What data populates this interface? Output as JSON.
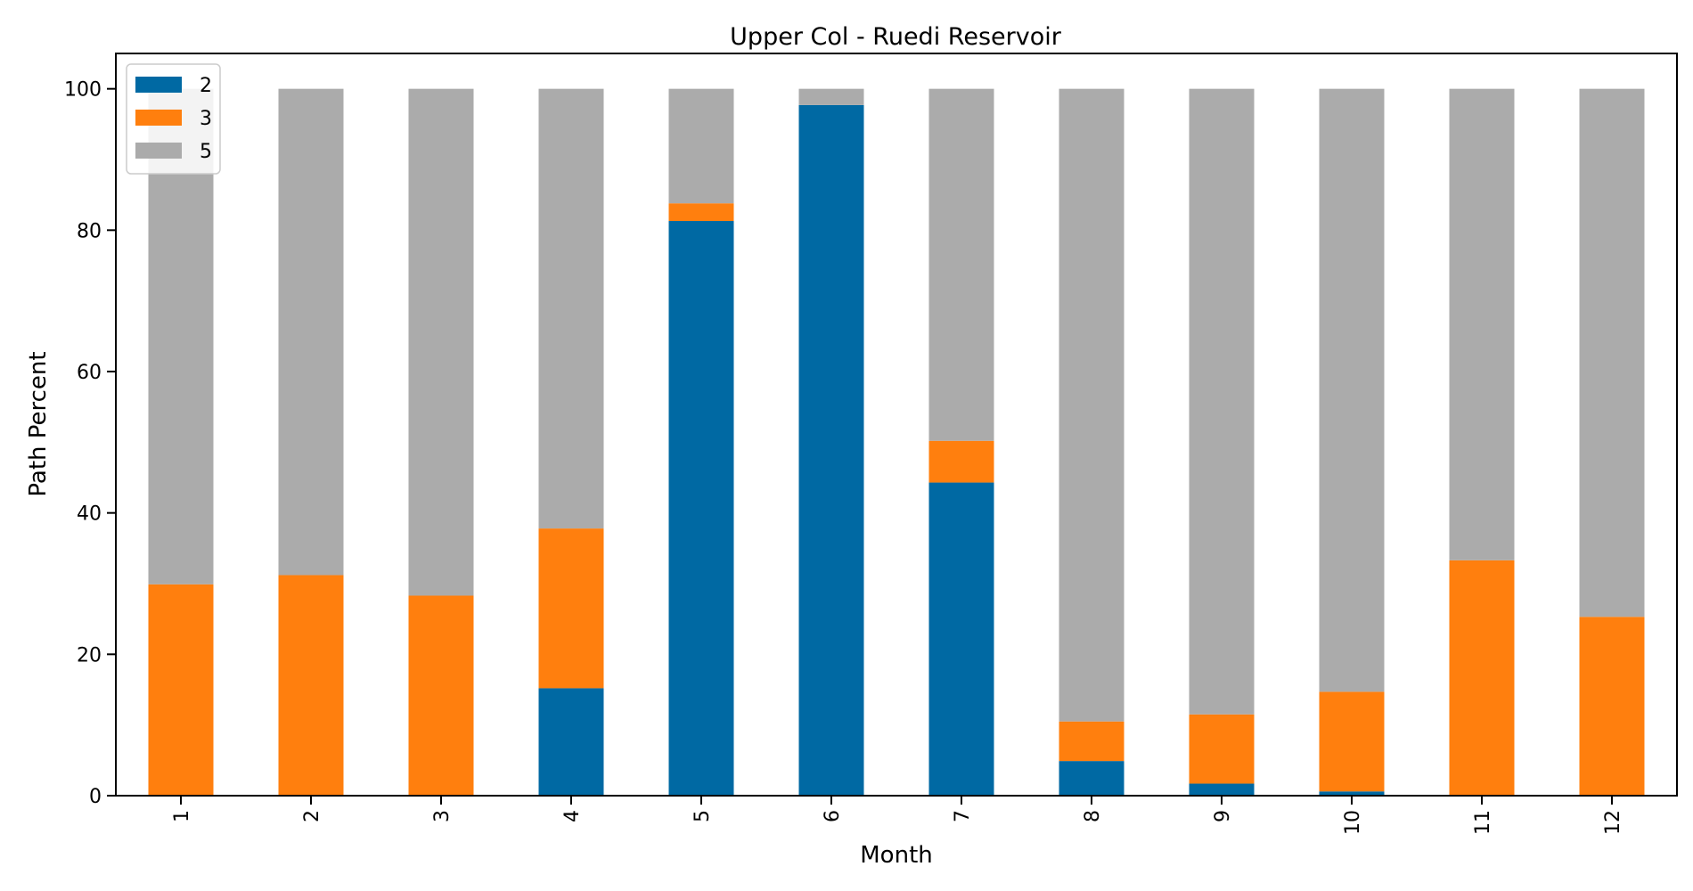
{
  "chart_data": {
    "type": "bar",
    "stacked": true,
    "title": "Upper Col - Ruedi Reservoir",
    "xlabel": "Month",
    "ylabel": "Path Percent",
    "categories": [
      "1",
      "2",
      "3",
      "4",
      "5",
      "6",
      "7",
      "8",
      "9",
      "10",
      "11",
      "12"
    ],
    "ylim": [
      0,
      105
    ],
    "yticks": [
      0,
      20,
      40,
      60,
      80,
      100
    ],
    "legend_position": "top-left",
    "grid": false,
    "series": [
      {
        "name": "2",
        "color": "#0069a3",
        "values": [
          0,
          0,
          0,
          15.2,
          81.3,
          97.7,
          44.3,
          4.9,
          1.7,
          0.6,
          0,
          0
        ]
      },
      {
        "name": "3",
        "color": "#ff7f0e",
        "values": [
          29.9,
          31.2,
          28.3,
          22.6,
          2.5,
          0,
          5.9,
          5.6,
          9.8,
          14.1,
          33.3,
          25.3
        ]
      },
      {
        "name": "5",
        "color": "#ababab",
        "values": [
          70.1,
          68.8,
          71.7,
          62.2,
          16.2,
          2.3,
          49.8,
          89.5,
          88.5,
          85.3,
          66.7,
          74.7
        ]
      }
    ]
  }
}
